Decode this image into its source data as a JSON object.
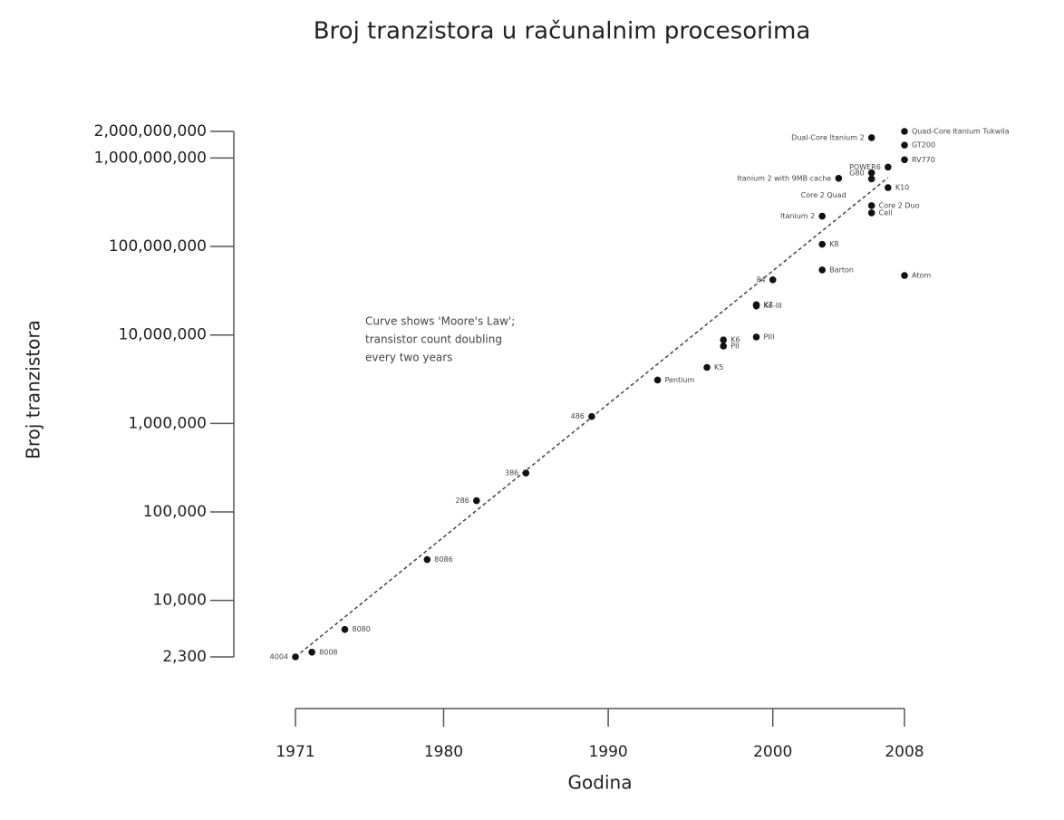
{
  "chart_data": {
    "type": "scatter",
    "title": "Broj tranzistora u računalnim procesorima",
    "xlabel": "Godina",
    "ylabel": "Broj tranzistora",
    "annotation": [
      "Curve shows 'Moore's Law';",
      "transistor count doubling",
      "every two years"
    ],
    "log_y": true,
    "color": "#111111",
    "xlim": [
      1971,
      2008
    ],
    "xticks": [
      1971,
      1980,
      1990,
      2000,
      2008
    ],
    "ylim": [
      2300,
      2000000000
    ],
    "yticks": [
      {
        "value": 2300,
        "label": "2,300"
      },
      {
        "value": 10000,
        "label": "10,000"
      },
      {
        "value": 100000,
        "label": "100,000"
      },
      {
        "value": 1000000,
        "label": "1,000,000"
      },
      {
        "value": 10000000,
        "label": "10,000,000"
      },
      {
        "value": 100000000,
        "label": "100,000,000"
      },
      {
        "value": 1000000000,
        "label": "1,000,000,000"
      },
      {
        "value": 2000000000,
        "label": "2,000,000,000"
      }
    ],
    "labels": [
      "4004",
      "8008",
      "8080",
      "8086",
      "286",
      "386",
      "486",
      "Pentium",
      "K5",
      "K6",
      "PII",
      "PIII",
      "K7",
      "K6-III",
      "P4",
      "Barton",
      "K8",
      "Itanium 2",
      "Itanium 2 with 9MB cache",
      "Cell",
      "Core 2 Duo",
      "Core 2 Quad",
      "G80",
      "POWER6",
      "Dual-Core Itanium 2",
      "K10",
      "Quad-Core Itanium Tukwila",
      "GT200",
      "RV770",
      "Atom"
    ],
    "x": [
      1971,
      1972,
      1974,
      1979,
      1982,
      1985,
      1989,
      1993,
      1996,
      1997,
      1997,
      1999,
      1999,
      1999,
      2000,
      2003,
      2003,
      2003,
      2004,
      2006,
      2006,
      2006,
      2006,
      2007,
      2006,
      2007,
      2008,
      2008,
      2008,
      2008
    ],
    "values": [
      2300,
      2600,
      4700,
      29000,
      134000,
      275000,
      1200000,
      3100000,
      4300000,
      8800000,
      7500000,
      9500000,
      22000000,
      21300000,
      42000000,
      54300000,
      105900000,
      220000000,
      590000000,
      240000000,
      290000000,
      580000000,
      680000000,
      790000000,
      1700000000,
      463000000,
      2000000000,
      1400000000,
      956000000,
      47000000
    ],
    "trend": {
      "x": [
        1971,
        2007
      ],
      "values": [
        2300,
        600000000
      ]
    }
  }
}
